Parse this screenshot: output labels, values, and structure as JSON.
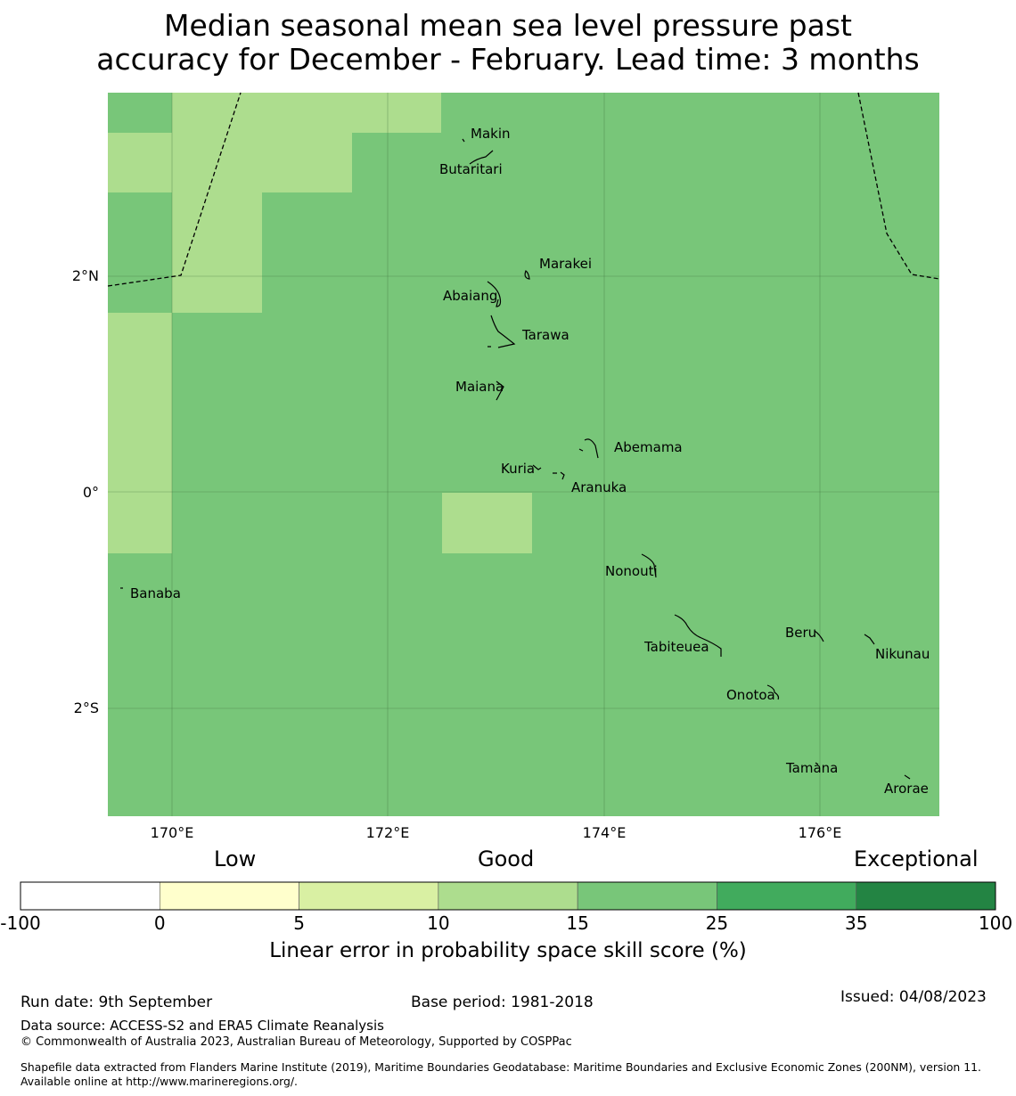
{
  "title": {
    "line1": "Median seasonal mean sea level pressure past",
    "line2": "accuracy for December - February. Lead time: 3 months"
  },
  "map": {
    "base_color": "#78c679",
    "x_ticks": [
      "170°E",
      "172°E",
      "174°E",
      "176°E"
    ],
    "y_ticks": [
      "2°N",
      "0°",
      "2°S"
    ],
    "places": [
      "Makin",
      "Butaritari",
      "Marakei",
      "Abaiang",
      "Tarawa",
      "Maiana",
      "Abemama",
      "Kuria",
      "Aranuka",
      "Nonouti",
      "Banaba",
      "Beru",
      "Tabiteuea",
      "Nikunau",
      "Onotoa",
      "Tamana",
      "Arorae"
    ],
    "skill_categories_present": [
      "10-15",
      "15-25"
    ]
  },
  "colorbar": {
    "headings": {
      "low": "Low",
      "good": "Good",
      "exceptional": "Exceptional"
    },
    "ticks": [
      "-100",
      "0",
      "5",
      "10",
      "15",
      "25",
      "35",
      "100"
    ],
    "colors": [
      "#ffffff",
      "#ffffcc",
      "#d9f0a3",
      "#addd8e",
      "#78c679",
      "#41ab5d",
      "#238443"
    ],
    "label": "Linear error in probability space skill score (%)"
  },
  "footer": {
    "run_date": "Run date: 9th September",
    "base_period": "Base period: 1981-2018",
    "issued": "Issued: 04/08/2023",
    "data_source": "Data source: ACCESS-S2 and ERA5 Climate Reanalysis",
    "copyright": "© Commonwealth of Australia 2023, Australian Bureau of Meteorology, Supported by COSPPac",
    "shapefile": "Shapefile data extracted from Flanders Marine Institute (2019), Maritime Boundaries Geodatabase: Maritime Boundaries and Exclusive Economic Zones (200NM), version 11. Available online at http://www.marineregions.org/."
  }
}
